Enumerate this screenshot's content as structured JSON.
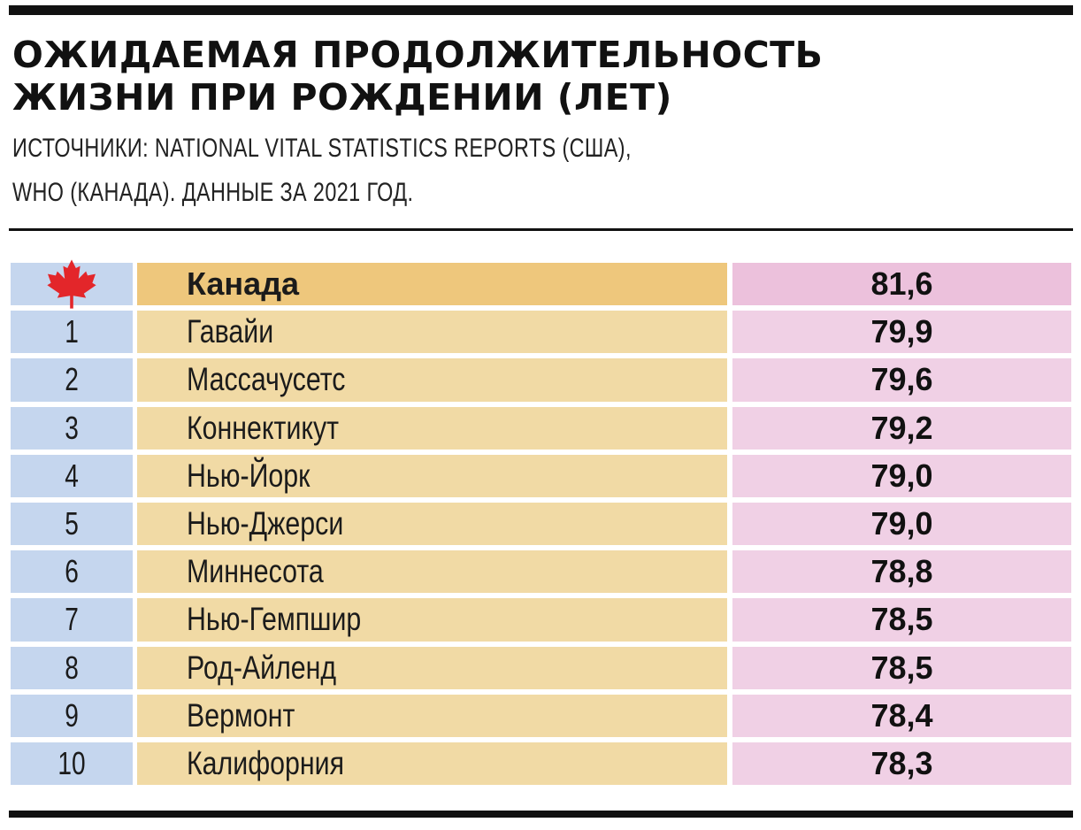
{
  "header": {
    "title_line1": "ОЖИДАЕМАЯ ПРОДОЛЖИТЕЛЬНОСТЬ",
    "title_line2": "ЖИЗНИ ПРИ РОЖДЕНИИ (ЛЕТ)",
    "source_line1": "ИСТОЧНИКИ: NATIONAL VITAL STATISTICS REPORTS (США),",
    "source_line2": "WHO (КАНАДА). ДАННЫЕ ЗА 2021 ГОД."
  },
  "colors": {
    "rank_bg": "#c5d6ee",
    "name_bg": "#f1daa5",
    "value_bg": "#f0d0e5",
    "highlight_name_bg": "#eec77c",
    "highlight_value_bg": "#ecc1dc",
    "flag_red": "#e3262a"
  },
  "chart_data": {
    "type": "table",
    "title": "ОЖИДАЕМАЯ ПРОДОЛЖИТЕЛЬНОСТЬ ЖИЗНИ ПРИ РОЖДЕНИИ (ЛЕТ)",
    "highlight_row": {
      "rank_icon": "maple-leaf-icon",
      "name": "Канада",
      "value": "81,6"
    },
    "rows": [
      {
        "rank": "1",
        "name": "Гавайи",
        "value": "79,9"
      },
      {
        "rank": "2",
        "name": "Массачусетс",
        "value": "79,6"
      },
      {
        "rank": "3",
        "name": "Коннектикут",
        "value": "79,2"
      },
      {
        "rank": "4",
        "name": "Нью-Йорк",
        "value": "79,0"
      },
      {
        "rank": "5",
        "name": "Нью-Джерси",
        "value": "79,0"
      },
      {
        "rank": "6",
        "name": "Миннесота",
        "value": "78,8"
      },
      {
        "rank": "7",
        "name": "Нью-Гемпшир",
        "value": "78,5"
      },
      {
        "rank": "8",
        "name": "Род-Айленд",
        "value": "78,5"
      },
      {
        "rank": "9",
        "name": "Вермонт",
        "value": "78,4"
      },
      {
        "rank": "10",
        "name": "Калифорния",
        "value": "78,3"
      }
    ]
  }
}
